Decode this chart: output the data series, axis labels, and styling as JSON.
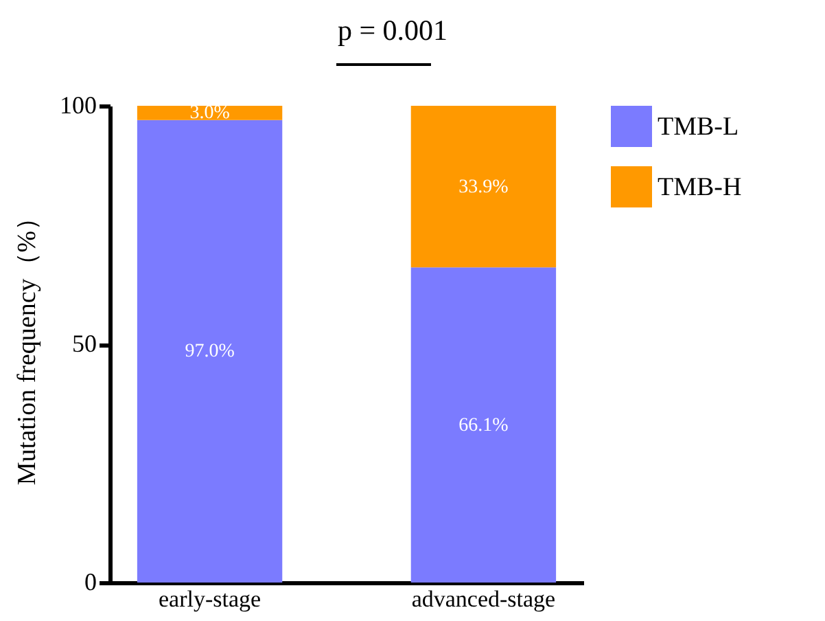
{
  "chart_data": {
    "type": "bar",
    "ylabel": "Mutation frequency（%）",
    "categories": [
      "early-stage",
      "advanced-stage"
    ],
    "series": [
      {
        "name": "TMB-L",
        "color": "#7b7bff",
        "values": [
          97.0,
          66.1
        ],
        "value_labels": [
          "97.0%",
          "66.1%"
        ]
      },
      {
        "name": "TMB-H",
        "color": "#ff9900",
        "values": [
          3.0,
          33.9
        ],
        "value_labels": [
          "3.0%",
          "33.9%"
        ]
      }
    ],
    "stacked": true,
    "ylim": [
      0,
      100
    ],
    "yticks": [
      0,
      50,
      100
    ],
    "grid": false,
    "legend": "top right",
    "annotations": [
      "p = 0.001"
    ]
  }
}
